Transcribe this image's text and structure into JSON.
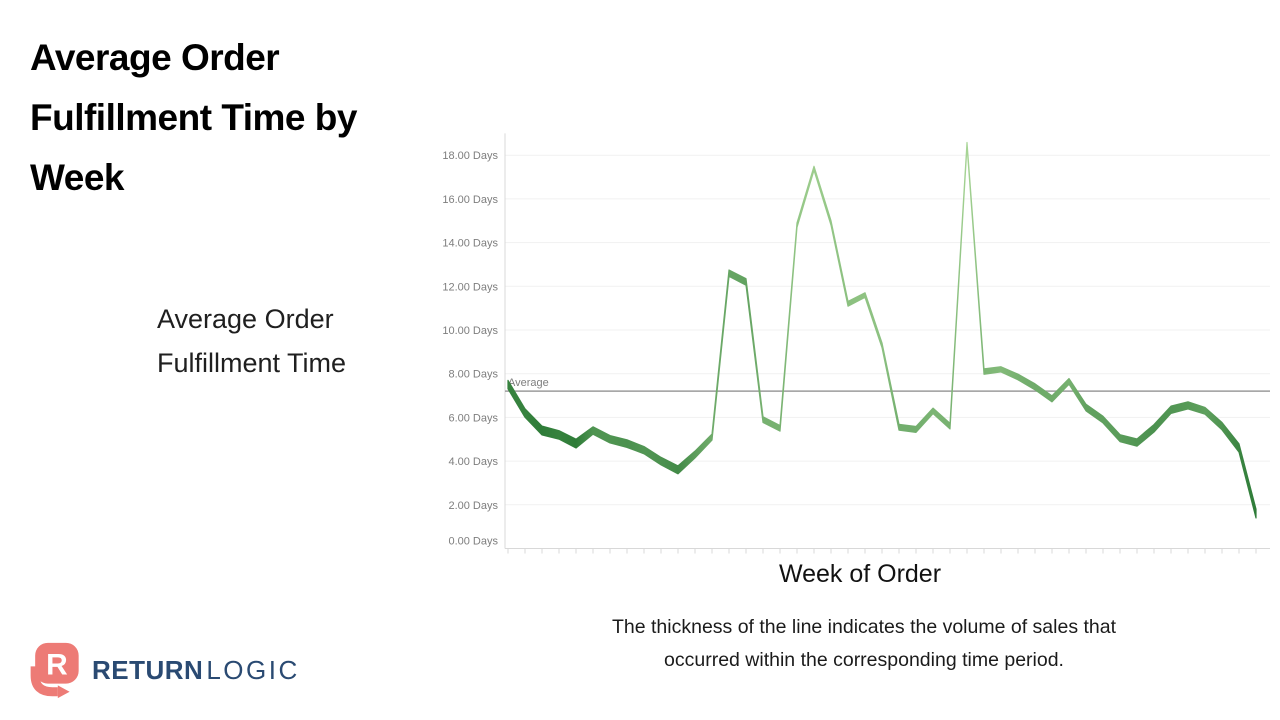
{
  "page": {
    "title": "Average Order Fulfillment Time by Week",
    "subtitle": "Average Order Fulfillment Time",
    "caption": "The thickness of the line indicates the volume of sales that occurred within the corresponding time period."
  },
  "logo": {
    "brand_bold": "RETURN",
    "brand_light": "LOGIC",
    "icon_letter": "R",
    "icon_color": "#ed7b76",
    "text_color": "#2a4a72"
  },
  "chart_data": {
    "type": "line",
    "title": "Average Order Fulfillment Time by Week",
    "xlabel": "Week of Order",
    "ylabel": "Days",
    "x_unit": "week",
    "x_tick_labels_visible": false,
    "ylim": [
      0,
      19
    ],
    "grid": "horizontal",
    "legend": "none",
    "y_tick_labels": [
      "0.00 Days",
      "2.00 Days",
      "4.00 Days",
      "6.00 Days",
      "8.00 Days",
      "10.00 Days",
      "12.00 Days",
      "14.00 Days",
      "16.00 Days",
      "18.00 Days"
    ],
    "average": {
      "label": "Average",
      "value": 7.2
    },
    "values_days": [
      7.5,
      6.2,
      5.4,
      5.2,
      4.8,
      5.4,
      5.0,
      4.8,
      4.5,
      4.0,
      3.6,
      4.3,
      5.1,
      12.6,
      12.2,
      5.9,
      5.5,
      14.8,
      17.4,
      14.9,
      11.2,
      11.6,
      9.3,
      5.55,
      5.45,
      6.3,
      5.6,
      18.5,
      8.1,
      8.2,
      7.85,
      7.4,
      6.85,
      7.65,
      6.45,
      5.9,
      5.05,
      4.85,
      5.5,
      6.35,
      6.55,
      6.3,
      5.6,
      4.6,
      1.6
    ],
    "volume_weights": [
      0.85,
      0.85,
      0.9,
      0.85,
      0.9,
      0.7,
      0.7,
      0.72,
      0.68,
      0.72,
      0.78,
      0.62,
      0.5,
      0.55,
      0.58,
      0.45,
      0.45,
      0.28,
      0.22,
      0.28,
      0.33,
      0.3,
      0.32,
      0.48,
      0.48,
      0.42,
      0.45,
      0.15,
      0.42,
      0.38,
      0.45,
      0.5,
      0.5,
      0.45,
      0.58,
      0.6,
      0.63,
      0.68,
      0.72,
      0.68,
      0.65,
      0.6,
      0.7,
      0.82,
      0.9
    ],
    "colors": {
      "low_volume": "#a8d596",
      "high_volume": "#2e7c38",
      "average_line": "#9c9c9c",
      "grid": "#f1f1f1",
      "axis": "#d8d8d8",
      "tick_label": "#7e7e7e"
    }
  }
}
